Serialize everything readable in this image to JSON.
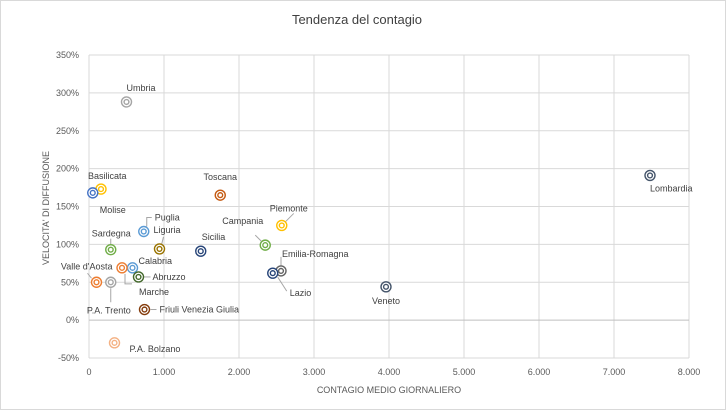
{
  "chart_data": {
    "type": "scatter",
    "title": "Tendenza del contagio",
    "xlabel": "CONTAGIO MEDIO GIORNALIERO",
    "ylabel": "VELOCITA' DI DIFFUSIONE",
    "xlim": [
      0,
      8000
    ],
    "ylim": [
      -50,
      350
    ],
    "x_ticks": [
      0,
      1000,
      2000,
      3000,
      4000,
      5000,
      6000,
      7000,
      8000
    ],
    "x_tick_labels": [
      "0",
      "1.000",
      "2.000",
      "3.000",
      "4.000",
      "5.000",
      "6.000",
      "7.000",
      "8.000"
    ],
    "y_ticks": [
      -50,
      0,
      50,
      100,
      150,
      200,
      250,
      300,
      350
    ],
    "y_tick_labels": [
      "-50%",
      "0%",
      "50%",
      "100%",
      "150%",
      "200%",
      "250%",
      "300%",
      "350%"
    ],
    "grid": true,
    "points": [
      {
        "name": "Umbria",
        "x": 500,
        "y": 288,
        "color": "#a5a5a5"
      },
      {
        "name": "Basilicata",
        "x": 160,
        "y": 173,
        "color": "#ffc000"
      },
      {
        "name": "Molise",
        "x": 50,
        "y": 168,
        "color": "#4472c4"
      },
      {
        "name": "Toscana",
        "x": 1750,
        "y": 165,
        "color": "#c55a11"
      },
      {
        "name": "Lombardia",
        "x": 7480,
        "y": 191,
        "color": "#44546a"
      },
      {
        "name": "Piemonte",
        "x": 2570,
        "y": 125,
        "color": "#ffc000"
      },
      {
        "name": "Puglia",
        "x": 730,
        "y": 117,
        "color": "#5b9bd5"
      },
      {
        "name": "Campania",
        "x": 2350,
        "y": 99,
        "color": "#70ad47"
      },
      {
        "name": "Sardegna",
        "x": 290,
        "y": 93,
        "color": "#70ad47"
      },
      {
        "name": "Liguria",
        "x": 940,
        "y": 94,
        "color": "#997300"
      },
      {
        "name": "Sicilia",
        "x": 1490,
        "y": 91,
        "color": "#264478"
      },
      {
        "name": "Emilia-Romagna",
        "x": 2560,
        "y": 65,
        "color": "#636363"
      },
      {
        "name": "Lazio",
        "x": 2450,
        "y": 62,
        "color": "#264478"
      },
      {
        "name": "Valle d'Aosta",
        "x": 100,
        "y": 50,
        "color": "#ed7d31"
      },
      {
        "name": "Calabria",
        "x": 580,
        "y": 69,
        "color": "#5b9bd5"
      },
      {
        "name": "Abruzzo",
        "x": 660,
        "y": 57,
        "color": "#43682b"
      },
      {
        "name": "Marche",
        "x": 440,
        "y": 69,
        "color": "#ed7d31"
      },
      {
        "name": "P.A. Trento",
        "x": 290,
        "y": 50,
        "color": "#a5a5a5"
      },
      {
        "name": "Veneto",
        "x": 3960,
        "y": 44,
        "color": "#44546a"
      },
      {
        "name": "Friuli Venezia Giulia",
        "x": 740,
        "y": 14,
        "color": "#843c0c"
      },
      {
        "name": "P.A. Bolzano",
        "x": 340,
        "y": -30,
        "color": "#f4b183"
      }
    ]
  }
}
